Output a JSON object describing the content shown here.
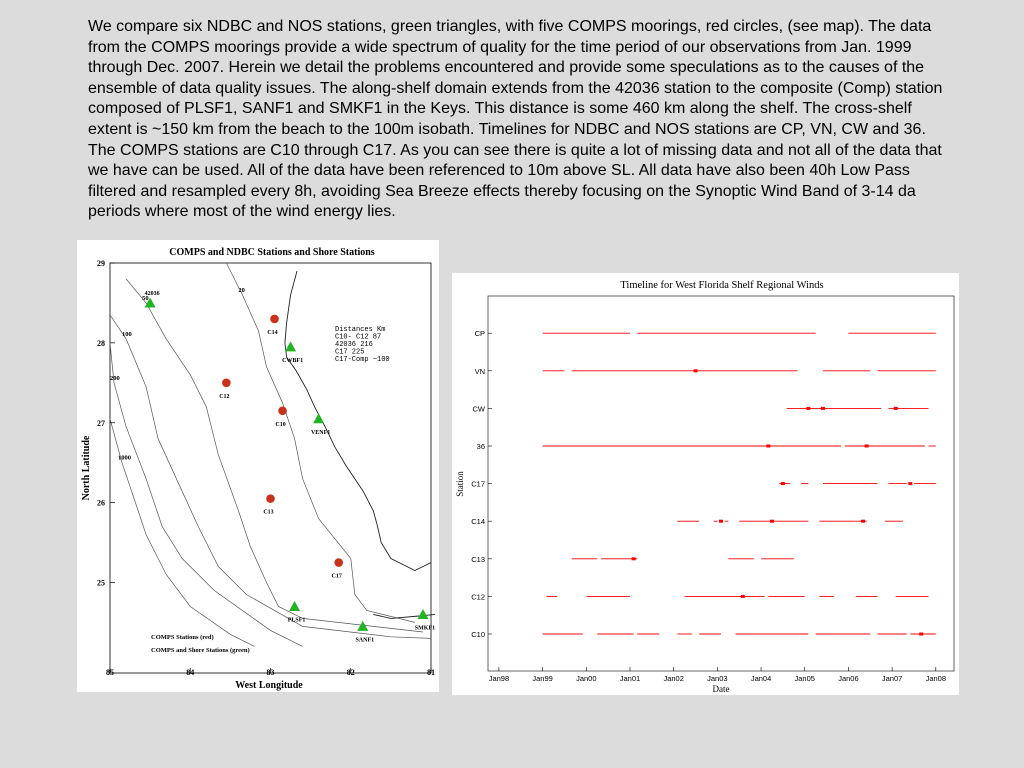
{
  "intro_text": "We compare six NDBC and NOS stations, green triangles, with five COMPS moorings, red circles, (see map). The data from the COMPS moorings provide a wide spectrum of quality for the time period of our observations from Jan. 1999 through Dec. 2007. Herein we detail the problems encountered and provide some speculations as to the causes of the ensemble of data quality issues. The along-shelf domain extends from the 42036 station to the composite (Comp) station composed of PLSF1, SANF1 and SMKF1 in the Keys. This distance is some 460 km along the shelf. The cross-shelf extent is ~150 km from the beach to the 100m isobath. Timelines for NDBC and NOS stations are CP, VN, CW and 36. The COMPS stations are C10 through C17. As you can see there is quite a lot of missing data and not all of the data that we have can be used. All of the data have been referenced to 10m above SL. All data have also been 40h Low Pass filtered and resampled every 8h, avoiding Sea Breeze effects thereby focusing on the Synoptic Wind Band of 3-14 da periods where most of the wind energy lies.",
  "chart_data": [
    {
      "type": "scatter",
      "title": "COMPS and NDBC Stations and Shore Stations",
      "xlabel": "West Longitude",
      "ylabel": "North Latitude",
      "xlim": [
        85,
        81
      ],
      "ylim": [
        24.2,
        29
      ],
      "x_ticks": [
        "85",
        "84",
        "83",
        "82",
        "81"
      ],
      "y_ticks": [
        "25",
        "26",
        "27",
        "28",
        "29"
      ],
      "series": [
        {
          "name": "COMPS Stations (red)",
          "color": "#c8311a",
          "marker": "circle",
          "points": [
            {
              "label": "C14",
              "lon": 82.95,
              "lat": 28.3
            },
            {
              "label": "C12",
              "lon": 83.55,
              "lat": 27.5
            },
            {
              "label": "C10",
              "lon": 82.85,
              "lat": 27.15
            },
            {
              "label": "C13",
              "lon": 83.0,
              "lat": 26.05
            },
            {
              "label": "C17",
              "lon": 82.15,
              "lat": 25.25
            }
          ]
        },
        {
          "name": "COMPS and Shore Stations (green)",
          "color": "#22b422",
          "marker": "triangle",
          "points": [
            {
              "label": "42036",
              "lon": 84.5,
              "lat": 28.5
            },
            {
              "label": "CWBF1",
              "lon": 82.75,
              "lat": 27.95
            },
            {
              "label": "VENF1",
              "lon": 82.4,
              "lat": 27.05
            },
            {
              "label": "PLSF1",
              "lon": 82.7,
              "lat": 24.7
            },
            {
              "label": "SANF1",
              "lon": 81.85,
              "lat": 24.45
            },
            {
              "label": "SMKF1",
              "lon": 81.1,
              "lat": 24.6
            }
          ]
        }
      ],
      "isobaths": [
        {
          "label": "20",
          "lines": [
            [
              [
                83.55,
                29.0
              ],
              [
                83.35,
                28.6
              ],
              [
                83.15,
                28.15
              ],
              [
                83.05,
                27.7
              ],
              [
                82.85,
                27.25
              ],
              [
                82.7,
                26.8
              ],
              [
                82.6,
                26.3
              ],
              [
                82.4,
                25.8
              ],
              [
                82.0,
                25.3
              ],
              [
                81.95,
                24.85
              ],
              [
                81.8,
                24.65
              ],
              [
                81.2,
                24.5
              ]
            ]
          ]
        },
        {
          "label": "50",
          "lines": [
            [
              [
                84.8,
                28.8
              ],
              [
                84.55,
                28.5
              ],
              [
                84.3,
                28.05
              ],
              [
                84.0,
                27.6
              ],
              [
                83.8,
                27.2
              ],
              [
                83.65,
                26.6
              ],
              [
                83.4,
                25.9
              ],
              [
                83.25,
                25.45
              ],
              [
                83.05,
                25.0
              ],
              [
                82.9,
                24.7
              ],
              [
                82.6,
                24.55
              ],
              [
                81.1,
                24.38
              ]
            ]
          ]
        },
        {
          "label": "100",
          "lines": [
            [
              [
                85.0,
                28.35
              ],
              [
                84.8,
                28.05
              ],
              [
                84.55,
                27.45
              ],
              [
                84.4,
                26.8
              ],
              [
                84.15,
                26.25
              ],
              [
                83.9,
                25.7
              ],
              [
                83.65,
                25.2
              ],
              [
                83.3,
                24.85
              ],
              [
                82.6,
                24.45
              ],
              [
                81.5,
                24.32
              ],
              [
                81.0,
                24.3
              ]
            ]
          ]
        },
        {
          "label": "200",
          "lines": [
            [
              [
                85.0,
                28.0
              ],
              [
                84.95,
                27.5
              ],
              [
                84.8,
                26.95
              ],
              [
                84.55,
                26.3
              ],
              [
                84.35,
                25.7
              ],
              [
                84.1,
                25.3
              ],
              [
                83.7,
                24.9
              ],
              [
                83.0,
                24.4
              ],
              [
                82.6,
                24.2
              ]
            ]
          ]
        },
        {
          "label": "1000",
          "lines": [
            [
              [
                85.0,
                27.05
              ],
              [
                84.85,
                26.5
              ],
              [
                84.7,
                26.05
              ],
              [
                84.55,
                25.6
              ],
              [
                84.3,
                25.1
              ],
              [
                84.0,
                24.7
              ],
              [
                83.5,
                24.35
              ],
              [
                83.2,
                24.2
              ]
            ]
          ]
        }
      ],
      "coastline": [
        [
          [
            82.67,
            28.9
          ],
          [
            82.75,
            28.6
          ],
          [
            82.8,
            28.25
          ],
          [
            82.82,
            28.0
          ],
          [
            82.8,
            27.82
          ],
          [
            82.68,
            27.65
          ],
          [
            82.55,
            27.42
          ],
          [
            82.45,
            27.2
          ],
          [
            82.32,
            26.95
          ],
          [
            82.2,
            26.7
          ],
          [
            82.05,
            26.45
          ],
          [
            81.85,
            26.15
          ],
          [
            81.72,
            25.9
          ],
          [
            81.67,
            25.72
          ],
          [
            81.62,
            25.5
          ],
          [
            81.5,
            25.3
          ],
          [
            81.3,
            25.2
          ],
          [
            81.2,
            25.15
          ],
          [
            81.1,
            25.2
          ],
          [
            81.0,
            25.25
          ]
        ],
        [
          [
            80.95,
            24.6
          ],
          [
            81.15,
            24.58
          ],
          [
            81.5,
            24.55
          ],
          [
            81.72,
            24.6
          ]
        ]
      ],
      "distance_table": {
        "header": "Distances  Km",
        "rows": [
          "C10- C12   87",
          "     42036 216",
          "       C17  225",
          "C17-Comp ~100"
        ]
      },
      "legend": [
        "COMPS Stations (red)",
        "COMPS and Shore Stations (green)"
      ],
      "legend_position": "bottom-left",
      "grid": false
    },
    {
      "type": "scatter",
      "title": "Timeline for West Florida Shelf Regional Winds",
      "xlabel": "Date",
      "ylabel": "Station",
      "x_ticks": [
        "Jan98",
        "Jan99",
        "Jan00",
        "Jan01",
        "Jan02",
        "Jan03",
        "Jan04",
        "Jan05",
        "Jan06",
        "Jan07",
        "Jan08"
      ],
      "xlim": [
        "1997-10",
        "2008-06"
      ],
      "categories": [
        "C10",
        "C12",
        "C13",
        "C14",
        "C17",
        "36",
        "CW",
        "VN",
        "CP"
      ],
      "color": "#ff0000",
      "grid": false,
      "series": [
        {
          "name": "CP",
          "coverage": [
            [
              "1999-01",
              "2001-01"
            ],
            [
              "2001-03",
              "2005-04"
            ],
            [
              "2006-01",
              "2008-01"
            ]
          ]
        },
        {
          "name": "VN",
          "coverage": [
            [
              "1999-01",
              "1999-07"
            ],
            [
              "1999-09",
              "2004-11"
            ],
            [
              "2005-06",
              "2006-07"
            ],
            [
              "2006-09",
              "2008-01"
            ]
          ]
        },
        {
          "name": "CW",
          "coverage": [
            [
              "2004-08",
              "2006-10"
            ],
            [
              "2006-12",
              "2007-11"
            ]
          ]
        },
        {
          "name": "36",
          "coverage": [
            [
              "1999-01",
              "2005-11"
            ],
            [
              "2005-12",
              "2007-10"
            ],
            [
              "2007-11",
              "2008-01"
            ]
          ]
        },
        {
          "name": "C17",
          "coverage": [
            [
              "2004-06",
              "2004-09"
            ],
            [
              "2004-12",
              "2005-02"
            ],
            [
              "2005-06",
              "2006-09"
            ],
            [
              "2006-12",
              "2007-05"
            ],
            [
              "2007-07",
              "2008-01"
            ]
          ]
        },
        {
          "name": "C14",
          "coverage": [
            [
              "2002-02",
              "2002-08"
            ],
            [
              "2002-12",
              "2003-01"
            ],
            [
              "2003-03",
              "2003-04"
            ],
            [
              "2003-07",
              "2005-02"
            ],
            [
              "2005-05",
              "2006-06"
            ],
            [
              "2006-11",
              "2007-04"
            ]
          ]
        },
        {
          "name": "C13",
          "coverage": [
            [
              "1999-09",
              "2000-04"
            ],
            [
              "2000-05",
              "2001-03"
            ],
            [
              "2003-04",
              "2003-11"
            ],
            [
              "2004-01",
              "2004-10"
            ]
          ]
        },
        {
          "name": "C12",
          "coverage": [
            [
              "1999-02",
              "1999-05"
            ],
            [
              "2000-01",
              "2001-01"
            ],
            [
              "2002-04",
              "2004-02"
            ],
            [
              "2004-03",
              "2005-01"
            ],
            [
              "2005-05",
              "2005-09"
            ],
            [
              "2006-03",
              "2006-09"
            ],
            [
              "2007-02",
              "2007-11"
            ]
          ]
        },
        {
          "name": "C10",
          "coverage": [
            [
              "1999-01",
              "1999-12"
            ],
            [
              "2000-04",
              "2001-02"
            ],
            [
              "2001-03",
              "2001-09"
            ],
            [
              "2002-02",
              "2002-06"
            ],
            [
              "2002-08",
              "2003-02"
            ],
            [
              "2003-06",
              "2005-02"
            ],
            [
              "2005-04",
              "2006-07"
            ],
            [
              "2006-09",
              "2007-05"
            ],
            [
              "2007-06",
              "2008-01"
            ]
          ]
        }
      ],
      "bursts": [
        {
          "station": "VN",
          "date": "2002-07"
        },
        {
          "station": "CW",
          "date": "2005-02"
        },
        {
          "station": "CW",
          "date": "2005-06"
        },
        {
          "station": "CW",
          "date": "2007-02"
        },
        {
          "station": "36",
          "date": "2004-03"
        },
        {
          "station": "36",
          "date": "2006-06"
        },
        {
          "station": "C17",
          "date": "2004-07"
        },
        {
          "station": "C17",
          "date": "2007-06"
        },
        {
          "station": "C14",
          "date": "2003-02"
        },
        {
          "station": "C14",
          "date": "2004-04"
        },
        {
          "station": "C14",
          "date": "2006-05"
        },
        {
          "station": "C13",
          "date": "2001-02"
        },
        {
          "station": "C12",
          "date": "2003-08"
        },
        {
          "station": "C10",
          "date": "2007-09"
        }
      ]
    }
  ]
}
